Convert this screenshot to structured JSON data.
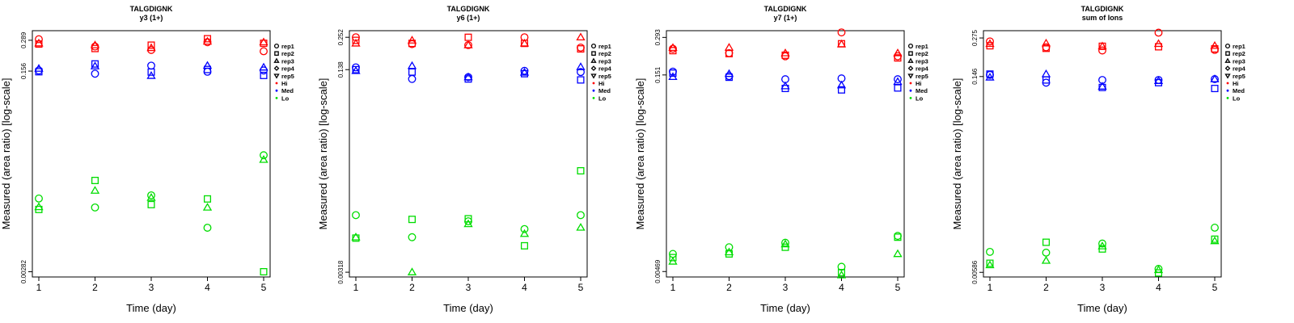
{
  "colors": {
    "Hi": "#ff0000",
    "Med": "#0000ff",
    "Lo": "#00dd00",
    "axis": "#000000"
  },
  "legend_entries": [
    {
      "label": "rep1",
      "kind": "shape",
      "shape": "circle"
    },
    {
      "label": "rep2",
      "kind": "shape",
      "shape": "square"
    },
    {
      "label": "rep3",
      "kind": "shape",
      "shape": "triangle"
    },
    {
      "label": "rep4",
      "kind": "shape",
      "shape": "diamond"
    },
    {
      "label": "rep5",
      "kind": "shape",
      "shape": "triangle-down"
    },
    {
      "label": "Hi",
      "kind": "dot",
      "group": "Hi"
    },
    {
      "label": "Med",
      "kind": "dot",
      "group": "Med"
    },
    {
      "label": "Lo",
      "kind": "dot",
      "group": "Lo"
    }
  ],
  "chart_data": [
    {
      "type": "scatter",
      "title": "TALGDIGNK",
      "subtitle": "y3 (1+)",
      "xlabel": "Time (day)",
      "ylabel": "Measured (area ratio) [log-scale]",
      "x_ticks": [
        "1",
        "2",
        "3",
        "4",
        "5"
      ],
      "y_ticks": [
        0.289,
        0.156,
        0.00282
      ],
      "y_tick_labels": [
        "0.289",
        "0.156",
        "0.00282"
      ],
      "ylim": [
        0.00254,
        0.35
      ],
      "yscale": "log",
      "groups": {
        "Hi": {
          "rep1": [
            0.295,
            0.255,
            0.238,
            0.278,
            0.232
          ],
          "rep2": [
            0.268,
            0.245,
            0.262,
            0.298,
            0.272
          ],
          "rep3": [
            0.272,
            0.262,
            0.248,
            0.282,
            0.278
          ]
        },
        "Med": {
          "rep1": [
            0.158,
            0.148,
            0.174,
            0.154,
            0.158
          ],
          "rep2": [
            0.154,
            0.18,
            0.153,
            0.161,
            0.143
          ],
          "rep3": [
            0.164,
            0.172,
            0.142,
            0.174,
            0.168
          ]
        },
        "Lo": {
          "rep1": [
            0.0122,
            0.0102,
            0.013,
            0.0068,
            0.029
          ],
          "rep2": [
            0.0098,
            0.0175,
            0.0108,
            0.0121,
            0.00282
          ],
          "rep3": [
            0.0103,
            0.0143,
            0.0124,
            0.0102,
            0.0265
          ]
        }
      }
    },
    {
      "type": "scatter",
      "title": "TALGDIGNK",
      "subtitle": "y6 (1+)",
      "xlabel": "Time (day)",
      "ylabel": "Measured (area ratio) [log-scale]",
      "x_ticks": [
        "1",
        "2",
        "3",
        "4",
        "5"
      ],
      "y_ticks": [
        0.252,
        0.138,
        0.00318
      ],
      "y_tick_labels": [
        "0.252",
        "0.138",
        "0.00318"
      ],
      "ylim": [
        0.00291,
        0.285
      ],
      "yscale": "log",
      "groups": {
        "Hi": {
          "rep1": [
            0.252,
            0.222,
            0.218,
            0.252,
            0.208
          ],
          "rep2": [
            0.238,
            0.225,
            0.252,
            0.225,
            0.203
          ],
          "rep3": [
            0.225,
            0.238,
            0.218,
            0.225,
            0.252
          ]
        },
        "Med": {
          "rep1": [
            0.144,
            0.116,
            0.12,
            0.135,
            0.132
          ],
          "rep2": [
            0.138,
            0.132,
            0.116,
            0.128,
            0.114
          ],
          "rep3": [
            0.135,
            0.148,
            0.12,
            0.131,
            0.145
          ]
        },
        "Lo": {
          "rep1": [
            0.0092,
            0.0061,
            0.0082,
            0.0071,
            0.0092
          ],
          "rep2": [
            0.006,
            0.0085,
            0.0086,
            0.0052,
            0.021
          ],
          "rep3": [
            0.0061,
            0.00318,
            0.0078,
            0.0065,
            0.0073
          ]
        }
      }
    },
    {
      "type": "scatter",
      "title": "TALGDIGNK",
      "subtitle": "y7 (1+)",
      "xlabel": "Time (day)",
      "ylabel": "Measured (area ratio) [log-scale]",
      "x_ticks": [
        "1",
        "2",
        "3",
        "4",
        "5"
      ],
      "y_ticks": [
        0.293,
        0.151,
        0.00469
      ],
      "y_tick_labels": [
        "0.293",
        "0.151",
        "0.00469"
      ],
      "ylim": [
        0.00426,
        0.33
      ],
      "yscale": "log",
      "groups": {
        "Hi": {
          "rep1": [
            0.24,
            0.222,
            0.21,
            0.32,
            0.21
          ],
          "rep2": [
            0.232,
            0.22,
            0.214,
            0.262,
            0.204
          ],
          "rep3": [
            0.244,
            0.245,
            0.222,
            0.26,
            0.222
          ]
        },
        "Med": {
          "rep1": [
            0.16,
            0.148,
            0.14,
            0.142,
            0.14
          ],
          "rep2": [
            0.156,
            0.145,
            0.119,
            0.116,
            0.12
          ],
          "rep3": [
            0.146,
            0.154,
            0.124,
            0.126,
            0.134
          ]
        },
        "Lo": {
          "rep1": [
            0.0064,
            0.0072,
            0.0078,
            0.0051,
            0.0088
          ],
          "rep2": [
            0.006,
            0.0064,
            0.0072,
            0.0046,
            0.0086
          ],
          "rep3": [
            0.0056,
            0.0066,
            0.0076,
            0.0044,
            0.0064
          ]
        }
      }
    },
    {
      "type": "scatter",
      "title": "TALGDIGNK",
      "subtitle": "sum of Ions",
      "xlabel": "Time (day)",
      "ylabel": "Measured (area ratio) [log-scale]",
      "x_ticks": [
        "1",
        "2",
        "3",
        "4",
        "5"
      ],
      "y_ticks": [
        0.275,
        0.146,
        0.00586
      ],
      "y_tick_labels": [
        "0.275",
        "0.146",
        "0.00586"
      ],
      "ylim": [
        0.00543,
        0.31
      ],
      "yscale": "log",
      "groups": {
        "Hi": {
          "rep1": [
            0.26,
            0.236,
            0.224,
            0.3,
            0.226
          ],
          "rep2": [
            0.242,
            0.232,
            0.24,
            0.238,
            0.23
          ],
          "rep3": [
            0.25,
            0.252,
            0.24,
            0.25,
            0.242
          ]
        },
        "Med": {
          "rep1": [
            0.15,
            0.132,
            0.138,
            0.138,
            0.14
          ],
          "rep2": [
            0.152,
            0.138,
            0.122,
            0.132,
            0.12
          ],
          "rep3": [
            0.144,
            0.152,
            0.124,
            0.136,
            0.14
          ]
        },
        "Lo": {
          "rep1": [
            0.0082,
            0.0081,
            0.0094,
            0.0062,
            0.0122
          ],
          "rep2": [
            0.0068,
            0.0096,
            0.0086,
            0.0058,
            0.0101
          ],
          "rep3": [
            0.0066,
            0.0071,
            0.009,
            0.0061,
            0.0098
          ]
        }
      }
    }
  ]
}
